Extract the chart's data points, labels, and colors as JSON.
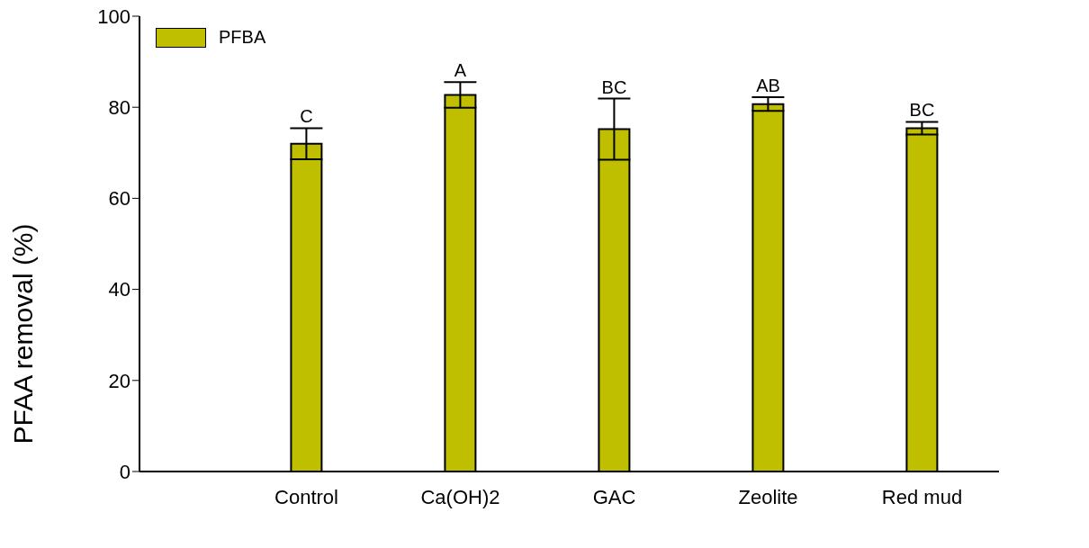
{
  "chart_data": {
    "type": "bar",
    "ylabel": "PFAA removal (%)",
    "categories": [
      "Control",
      "Ca(OH)2",
      "GAC",
      "Zeolite",
      "Red mud"
    ],
    "series": [
      {
        "name": "PFBA",
        "color": "#bfbf00",
        "values": [
          72.0,
          82.7,
          75.2,
          80.7,
          75.4
        ],
        "errors": [
          3.4,
          2.8,
          6.7,
          1.5,
          1.4
        ]
      }
    ],
    "ylim": [
      0,
      100
    ],
    "yticks": [
      0,
      20,
      40,
      60,
      80,
      100
    ],
    "grid": false,
    "legend": "top left",
    "annotations": [
      "C",
      "A",
      "BC",
      "AB",
      "BC"
    ]
  }
}
